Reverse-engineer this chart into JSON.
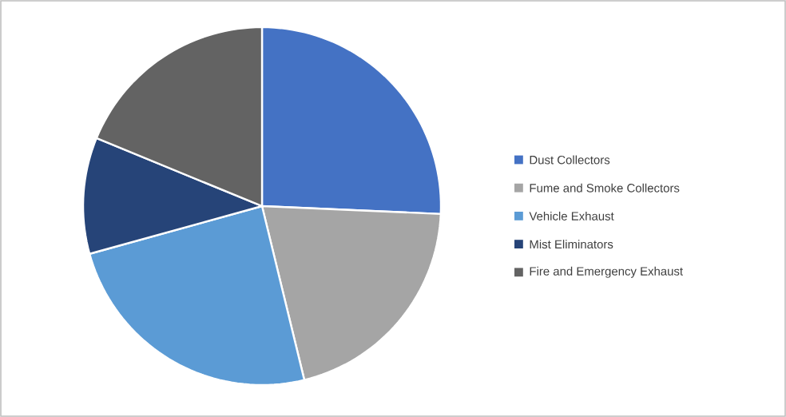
{
  "chart_data": {
    "type": "pie",
    "categories": [
      "Dust Collectors",
      "Fume and Smoke Collectors",
      "Vehicle Exhaust",
      "Mist Eliminators",
      "Fire and Emergency Exhaust"
    ],
    "values": [
      25.7,
      20.5,
      24.5,
      10.5,
      18.8
    ],
    "colors": [
      "#4472c4",
      "#a5a5a5",
      "#5b9bd5",
      "#264478",
      "#636363"
    ],
    "legend": "right"
  }
}
